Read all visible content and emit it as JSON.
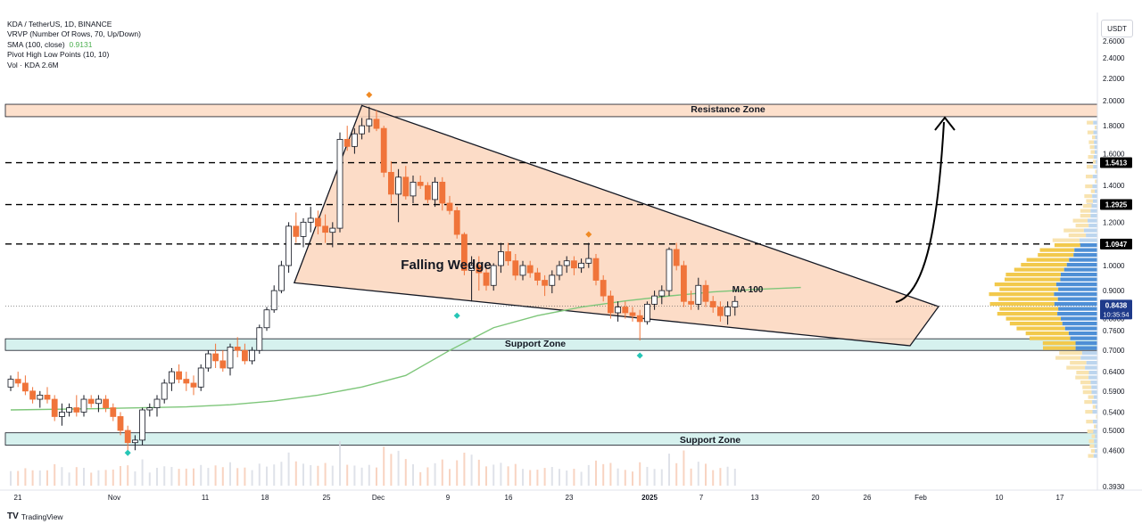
{
  "legend": {
    "symbol": "KDA / TetherUS, 1D, BINANCE",
    "vrvp": "VRVP (Number Of Rows, 70, Up/Down)",
    "sma_label": "SMA (100, close)",
    "sma_value": "0.9131",
    "pivot": "Pivot High Low Points (10, 10)",
    "vol": "Vol · KDA  2.6M"
  },
  "currency_button": "USDT",
  "branding": "TradingView",
  "annotations": {
    "resistance_zone": "Resistance Zone",
    "support_zone_upper": "Support Zone",
    "support_zone_lower": "Support Zone",
    "pattern": "Falling Wedge",
    "ma": "MA 100"
  },
  "colors": {
    "up": "#ffffff",
    "up_border": "#131722",
    "down": "#f0743a",
    "sma": "#7ec67a",
    "wedge_fill": "#fbd6bd",
    "resistance_fill": "#fde0cc",
    "support_fill": "#d6f1ee",
    "last_price_bg": "#1e3a8a",
    "pivot_high": "#f08a24",
    "pivot_low": "#26c6b6"
  },
  "chart_data": {
    "type": "candlestick",
    "x_ticks": [
      "21",
      "Nov",
      "11",
      "18",
      "25",
      "Dec",
      "9",
      "16",
      "23",
      "2025",
      "7",
      "13",
      "20",
      "26",
      "Feb",
      "10",
      "17"
    ],
    "y_ticks": [
      "2.6000",
      "2.4000",
      "2.2000",
      "2.0000",
      "1.8000",
      "1.6000",
      "1.4000",
      "1.2000",
      "1.0000",
      "0.9000",
      "0.8000",
      "0.7600",
      "0.7000",
      "0.6400",
      "0.5900",
      "0.5400",
      "0.5000",
      "0.4600",
      "0.3930"
    ],
    "scale": "log",
    "ylim": [
      0.39,
      2.9
    ],
    "levels": [
      {
        "value": 1.5413,
        "label": "1.5413"
      },
      {
        "value": 1.2925,
        "label": "1.2925"
      },
      {
        "value": 1.0947,
        "label": "1.0947"
      }
    ],
    "last_price": {
      "value": 0.8438,
      "label": "0.8438",
      "countdown": "10:35:54"
    },
    "zones": [
      {
        "name": "Resistance Zone",
        "low": 1.87,
        "high": 1.97
      },
      {
        "name": "Support Zone",
        "low": 0.7,
        "high": 0.735
      },
      {
        "name": "Support Zone",
        "low": 0.47,
        "high": 0.495
      }
    ],
    "candles": [
      [
        0.6,
        0.63,
        0.59,
        0.62
      ],
      [
        0.62,
        0.64,
        0.6,
        0.61
      ],
      [
        0.61,
        0.63,
        0.58,
        0.59
      ],
      [
        0.59,
        0.6,
        0.56,
        0.57
      ],
      [
        0.57,
        0.59,
        0.55,
        0.58
      ],
      [
        0.58,
        0.6,
        0.56,
        0.57
      ],
      [
        0.57,
        0.58,
        0.52,
        0.53
      ],
      [
        0.53,
        0.56,
        0.51,
        0.54
      ],
      [
        0.54,
        0.56,
        0.53,
        0.55
      ],
      [
        0.55,
        0.58,
        0.53,
        0.54
      ],
      [
        0.54,
        0.58,
        0.53,
        0.57
      ],
      [
        0.57,
        0.58,
        0.55,
        0.56
      ],
      [
        0.56,
        0.58,
        0.54,
        0.57
      ],
      [
        0.57,
        0.58,
        0.54,
        0.55
      ],
      [
        0.55,
        0.56,
        0.52,
        0.53
      ],
      [
        0.53,
        0.54,
        0.49,
        0.5
      ],
      [
        0.5,
        0.51,
        0.46,
        0.475
      ],
      [
        0.475,
        0.49,
        0.46,
        0.48
      ],
      [
        0.48,
        0.55,
        0.47,
        0.545
      ],
      [
        0.545,
        0.56,
        0.53,
        0.55
      ],
      [
        0.55,
        0.58,
        0.53,
        0.57
      ],
      [
        0.57,
        0.62,
        0.56,
        0.61
      ],
      [
        0.61,
        0.65,
        0.59,
        0.64
      ],
      [
        0.64,
        0.66,
        0.61,
        0.62
      ],
      [
        0.62,
        0.64,
        0.59,
        0.61
      ],
      [
        0.61,
        0.63,
        0.58,
        0.6
      ],
      [
        0.6,
        0.66,
        0.59,
        0.65
      ],
      [
        0.65,
        0.7,
        0.64,
        0.69
      ],
      [
        0.69,
        0.72,
        0.65,
        0.67
      ],
      [
        0.67,
        0.7,
        0.64,
        0.65
      ],
      [
        0.65,
        0.72,
        0.63,
        0.71
      ],
      [
        0.71,
        0.74,
        0.68,
        0.7
      ],
      [
        0.7,
        0.72,
        0.66,
        0.67
      ],
      [
        0.67,
        0.71,
        0.66,
        0.7
      ],
      [
        0.7,
        0.78,
        0.69,
        0.77
      ],
      [
        0.77,
        0.84,
        0.76,
        0.83
      ],
      [
        0.83,
        0.92,
        0.82,
        0.9
      ],
      [
        0.9,
        1.02,
        0.89,
        1.0
      ],
      [
        1.0,
        1.2,
        0.97,
        1.18
      ],
      [
        1.18,
        1.25,
        1.1,
        1.13
      ],
      [
        1.13,
        1.22,
        1.08,
        1.2
      ],
      [
        1.2,
        1.28,
        1.15,
        1.22
      ],
      [
        1.22,
        1.26,
        1.14,
        1.18
      ],
      [
        1.18,
        1.24,
        1.1,
        1.15
      ],
      [
        1.15,
        1.2,
        1.08,
        1.17
      ],
      [
        1.17,
        1.75,
        1.15,
        1.7
      ],
      [
        1.7,
        1.8,
        1.62,
        1.65
      ],
      [
        1.65,
        1.78,
        1.6,
        1.74
      ],
      [
        1.74,
        1.86,
        1.7,
        1.8
      ],
      [
        1.8,
        1.95,
        1.75,
        1.85
      ],
      [
        1.85,
        1.92,
        1.76,
        1.78
      ],
      [
        1.78,
        1.8,
        1.45,
        1.48
      ],
      [
        1.48,
        1.55,
        1.3,
        1.35
      ],
      [
        1.35,
        1.5,
        1.2,
        1.45
      ],
      [
        1.45,
        1.52,
        1.32,
        1.34
      ],
      [
        1.34,
        1.46,
        1.3,
        1.42
      ],
      [
        1.42,
        1.46,
        1.38,
        1.4
      ],
      [
        1.4,
        1.42,
        1.3,
        1.32
      ],
      [
        1.32,
        1.45,
        1.28,
        1.42
      ],
      [
        1.42,
        1.45,
        1.26,
        1.3
      ],
      [
        1.3,
        1.34,
        1.24,
        1.26
      ],
      [
        1.26,
        1.28,
        1.12,
        1.14
      ],
      [
        1.14,
        1.15,
        0.96,
        0.98
      ],
      [
        0.98,
        1.04,
        0.86,
        1.0
      ],
      [
        1.0,
        1.04,
        0.9,
        0.97
      ],
      [
        0.97,
        0.99,
        0.9,
        0.92
      ],
      [
        0.92,
        1.01,
        0.9,
        1.0
      ],
      [
        1.0,
        1.1,
        0.97,
        1.06
      ],
      [
        1.06,
        1.1,
        1.0,
        1.02
      ],
      [
        1.02,
        1.05,
        0.94,
        0.96
      ],
      [
        0.96,
        1.02,
        0.94,
        1.0
      ],
      [
        1.0,
        1.02,
        0.95,
        0.97
      ],
      [
        0.97,
        0.99,
        0.92,
        0.94
      ],
      [
        0.94,
        0.96,
        0.88,
        0.92
      ],
      [
        0.92,
        0.98,
        0.89,
        0.96
      ],
      [
        0.96,
        1.02,
        0.94,
        1.0
      ],
      [
        1.0,
        1.04,
        0.97,
        1.02
      ],
      [
        1.02,
        1.04,
        0.96,
        0.99
      ],
      [
        0.99,
        1.03,
        0.97,
        1.01
      ],
      [
        1.01,
        1.1,
        0.99,
        1.03
      ],
      [
        1.03,
        1.05,
        0.92,
        0.94
      ],
      [
        0.94,
        0.96,
        0.86,
        0.88
      ],
      [
        0.88,
        0.9,
        0.8,
        0.82
      ],
      [
        0.82,
        0.86,
        0.79,
        0.84
      ],
      [
        0.84,
        0.86,
        0.8,
        0.82
      ],
      [
        0.82,
        0.84,
        0.79,
        0.81
      ],
      [
        0.81,
        0.83,
        0.73,
        0.79
      ],
      [
        0.79,
        0.86,
        0.78,
        0.85
      ],
      [
        0.85,
        0.9,
        0.83,
        0.88
      ],
      [
        0.88,
        0.92,
        0.85,
        0.9
      ],
      [
        0.9,
        1.08,
        0.88,
        1.07
      ],
      [
        1.07,
        1.1,
        0.98,
        1.0
      ],
      [
        1.0,
        1.02,
        0.84,
        0.86
      ],
      [
        0.86,
        0.9,
        0.83,
        0.85
      ],
      [
        0.85,
        0.95,
        0.83,
        0.92
      ],
      [
        0.92,
        0.94,
        0.84,
        0.86
      ],
      [
        0.86,
        0.88,
        0.82,
        0.84
      ],
      [
        0.84,
        0.86,
        0.79,
        0.81
      ],
      [
        0.81,
        0.86,
        0.78,
        0.84
      ],
      [
        0.84,
        0.88,
        0.81,
        0.86
      ]
    ],
    "sma100": [
      [
        0,
        0.545
      ],
      [
        20,
        0.548
      ],
      [
        40,
        0.552
      ],
      [
        50,
        0.557
      ],
      [
        60,
        0.566
      ],
      [
        70,
        0.58
      ],
      [
        80,
        0.6
      ],
      [
        90,
        0.63
      ],
      [
        100,
        0.7
      ],
      [
        110,
        0.77
      ],
      [
        120,
        0.81
      ],
      [
        130,
        0.84
      ],
      [
        140,
        0.862
      ],
      [
        150,
        0.88
      ],
      [
        160,
        0.895
      ],
      [
        170,
        0.905
      ],
      [
        180,
        0.912
      ]
    ],
    "wedge": {
      "upper": [
        [
          39,
          0.93
        ],
        [
          48,
          1.96
        ],
        [
          107,
          0.85
        ]
      ],
      "lower": [
        [
          39,
          0.93
        ],
        [
          103,
          0.71
        ]
      ]
    }
  }
}
